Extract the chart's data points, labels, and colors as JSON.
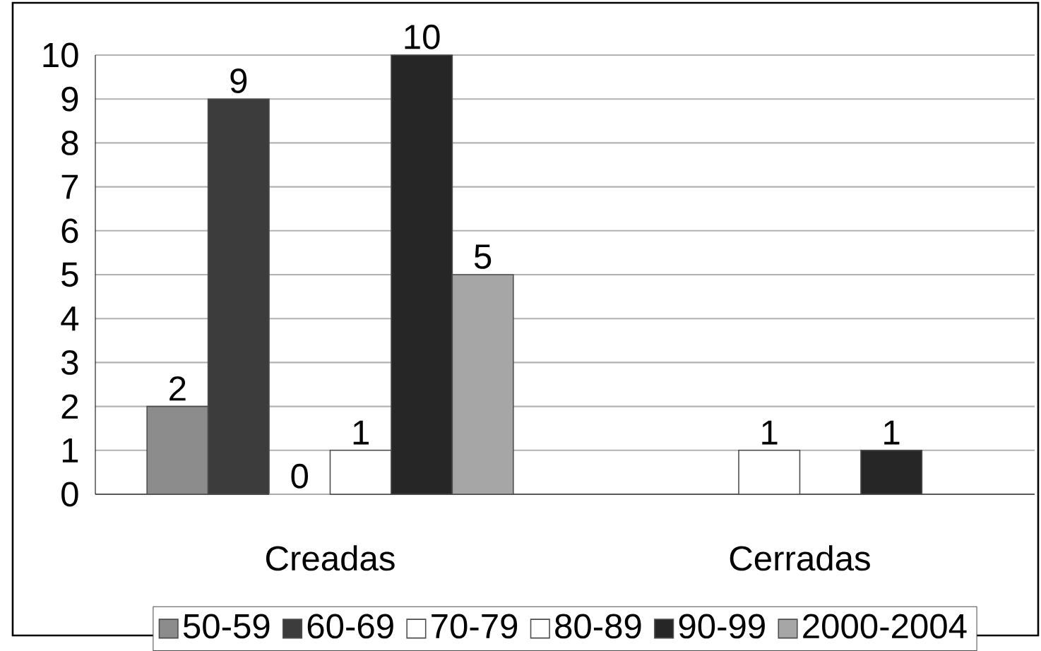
{
  "chart_data": {
    "type": "bar",
    "categories": [
      "Creadas",
      "Cerradas"
    ],
    "series": [
      {
        "name": "50-59",
        "color": "#8c8c8c",
        "values": [
          2,
          null
        ],
        "value_labels": [
          "2",
          null
        ]
      },
      {
        "name": "60-69",
        "color": "#3c3c3c",
        "values": [
          9,
          null
        ],
        "value_labels": [
          "9",
          null
        ]
      },
      {
        "name": "70-79",
        "color": "#ffffff",
        "values": [
          0,
          1
        ],
        "value_labels": [
          "0",
          "1"
        ]
      },
      {
        "name": "80-89",
        "color": "#ffffff",
        "values": [
          1,
          null
        ],
        "value_labels": [
          "1",
          null
        ]
      },
      {
        "name": "90-99",
        "color": "#262626",
        "values": [
          10,
          1
        ],
        "value_labels": [
          "10",
          "1"
        ]
      },
      {
        "name": "2000-2004",
        "color": "#a6a6a6",
        "values": [
          5,
          null
        ],
        "value_labels": [
          "5",
          null
        ]
      }
    ],
    "ylim": [
      0,
      10
    ],
    "yticks": [
      0,
      1,
      2,
      3,
      4,
      5,
      6,
      7,
      8,
      9,
      10
    ],
    "grid": "y",
    "legend": "bottom"
  }
}
